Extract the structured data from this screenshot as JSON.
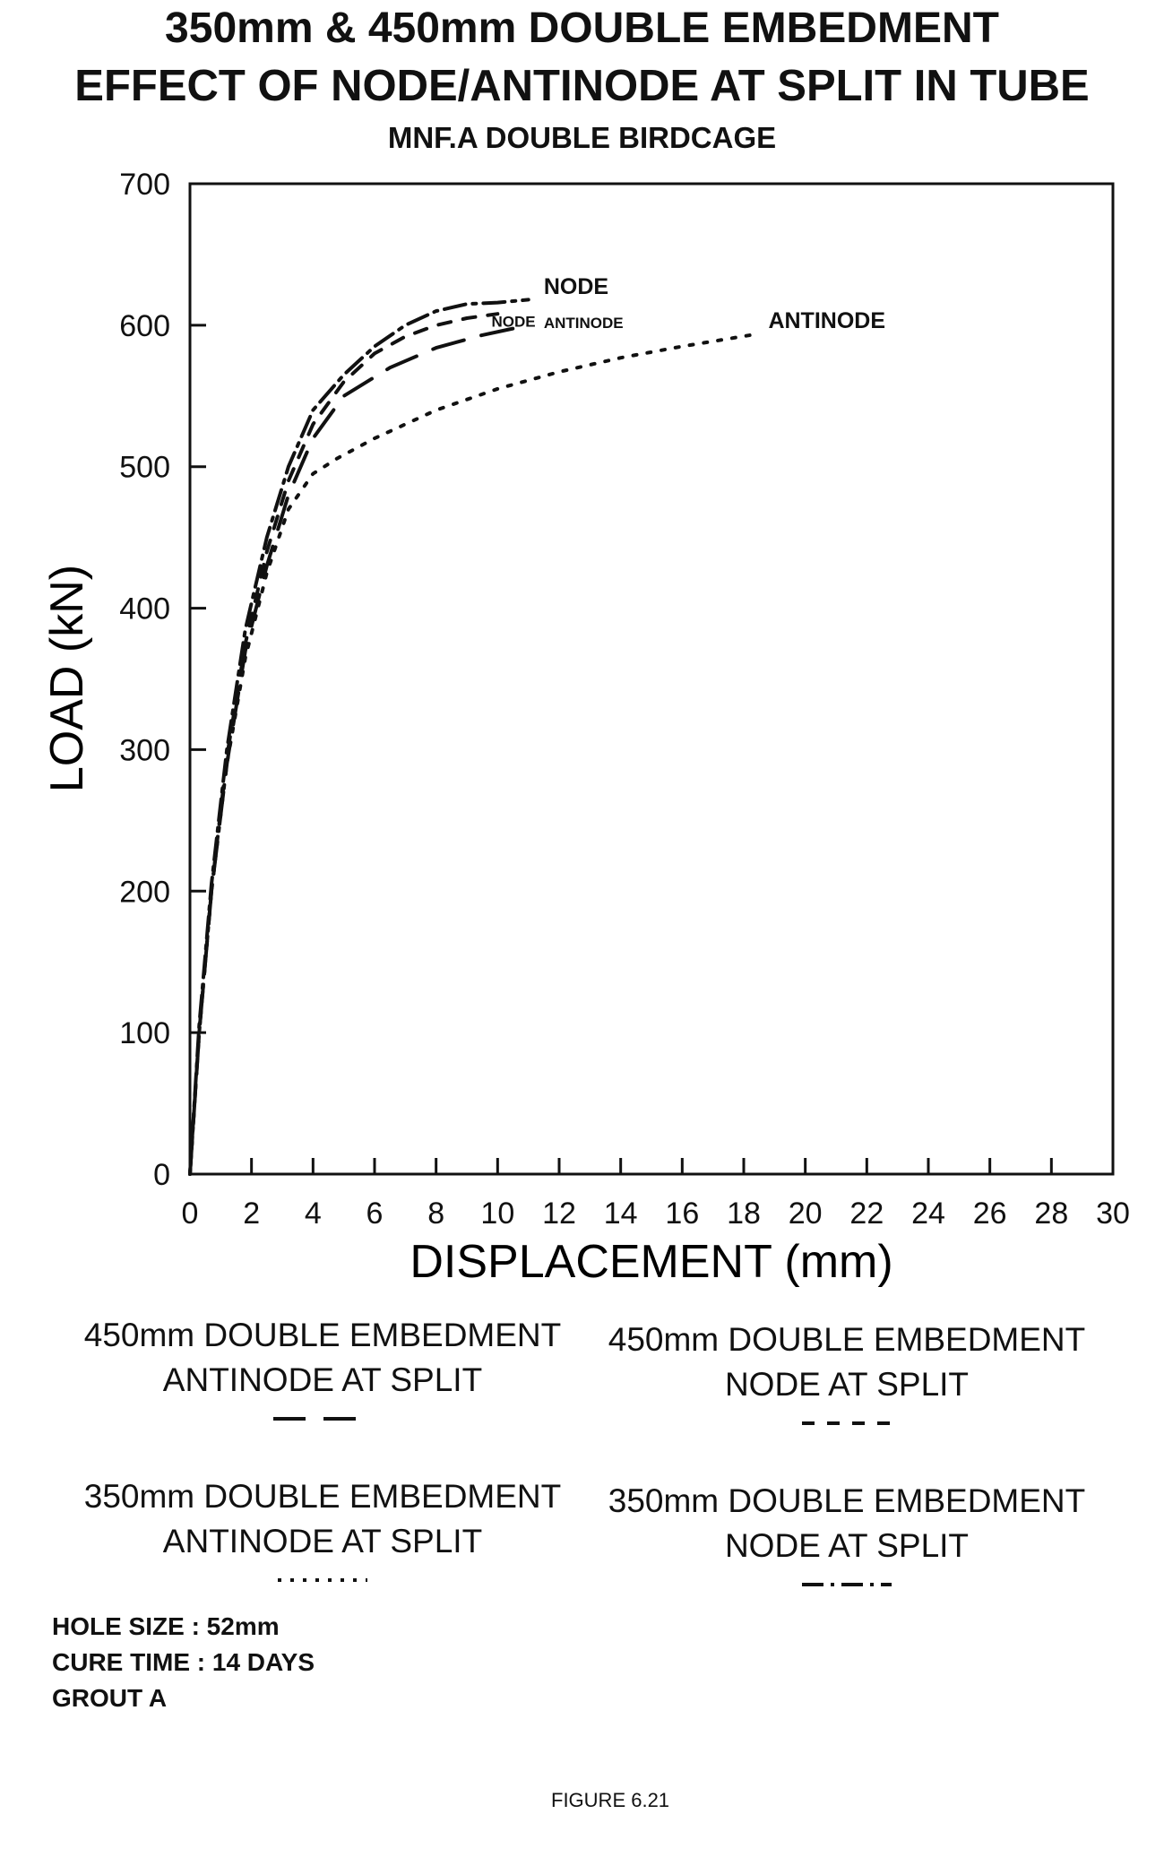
{
  "header": {
    "title_line1": "350mm & 450mm DOUBLE EMBEDMENT",
    "title_line2": "EFFECT OF NODE/ANTINODE AT SPLIT IN TUBE",
    "subtitle": "MNF.A DOUBLE BIRDCAGE"
  },
  "chart_data": {
    "type": "line",
    "xlabel": "DISPLACEMENT (mm)",
    "ylabel": "LOAD (kN)",
    "xlim": [
      0,
      30
    ],
    "ylim": [
      0,
      700
    ],
    "xticks": [
      0,
      2,
      4,
      6,
      8,
      10,
      12,
      14,
      16,
      18,
      20,
      22,
      24,
      26,
      28,
      30
    ],
    "yticks": [
      0,
      100,
      200,
      300,
      400,
      500,
      600,
      700
    ],
    "grid": false,
    "annotations": [
      {
        "text": "NODE",
        "x": 11.5,
        "y": 622
      },
      {
        "text": "NODE",
        "x": 9.8,
        "y": 599
      },
      {
        "text": "ANTINODE",
        "x": 11.5,
        "y": 598
      },
      {
        "text": "ANTINODE",
        "x": 18.8,
        "y": 598
      }
    ],
    "series": [
      {
        "name": "450mm DOUBLE EMBEDMENT ANTINODE AT SPLIT",
        "style": "long-dash",
        "x": [
          0,
          0.3,
          0.7,
          1.2,
          1.8,
          2.5,
          3.2,
          4.0,
          5.0,
          6.5,
          8.0,
          9.5,
          11.0
        ],
        "y": [
          0,
          100,
          200,
          290,
          370,
          430,
          480,
          520,
          550,
          570,
          584,
          593,
          600
        ]
      },
      {
        "name": "450mm DOUBLE EMBEDMENT NODE AT SPLIT",
        "style": "short-dash",
        "x": [
          0,
          0.3,
          0.7,
          1.2,
          1.8,
          2.5,
          3.2,
          4.0,
          5.0,
          6.0,
          7.0,
          8.0,
          9.0,
          10.0
        ],
        "y": [
          0,
          100,
          200,
          295,
          375,
          440,
          490,
          530,
          560,
          580,
          592,
          600,
          605,
          608
        ]
      },
      {
        "name": "350mm DOUBLE EMBEDMENT ANTINODE AT SPLIT",
        "style": "dotted",
        "x": [
          0,
          0.3,
          0.7,
          1.2,
          1.8,
          2.5,
          3.2,
          4.0,
          4.8,
          6.0,
          8.0,
          10.0,
          12.0,
          14.0,
          16.0,
          18.5
        ],
        "y": [
          0,
          100,
          200,
          290,
          365,
          425,
          470,
          495,
          506,
          520,
          540,
          555,
          567,
          577,
          585,
          594
        ]
      },
      {
        "name": "350mm DOUBLE EMBEDMENT NODE AT SPLIT",
        "style": "dash-dot",
        "x": [
          0,
          0.3,
          0.7,
          1.2,
          1.8,
          2.5,
          3.2,
          4.0,
          5.0,
          6.0,
          7.0,
          8.0,
          9.0,
          10.0,
          11.0
        ],
        "y": [
          0,
          105,
          205,
          300,
          385,
          450,
          500,
          540,
          565,
          585,
          600,
          610,
          615,
          616,
          618
        ]
      }
    ]
  },
  "legend": {
    "items": [
      {
        "line1": "450mm DOUBLE EMBEDMENT",
        "line2": "ANTINODE AT SPLIT",
        "style": "long-dash"
      },
      {
        "line1": "450mm DOUBLE EMBEDMENT",
        "line2": "NODE AT SPLIT",
        "style": "short-dash"
      },
      {
        "line1": "350mm DOUBLE EMBEDMENT",
        "line2": "ANTINODE AT SPLIT",
        "style": "dotted"
      },
      {
        "line1": "350mm DOUBLE EMBEDMENT",
        "line2": "NODE AT SPLIT",
        "style": "dash-dot"
      }
    ]
  },
  "notes": {
    "hole_size": "HOLE SIZE : 52mm",
    "cure_time": "CURE TIME : 14 DAYS",
    "grout": "GROUT A"
  },
  "figure_label": "FIGURE 6.21"
}
